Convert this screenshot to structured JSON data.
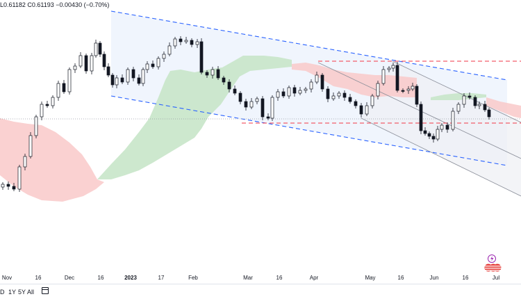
{
  "header": {
    "low": "L0.61182",
    "close": "C0.61193",
    "change": "−0.00430 (−0.70%)"
  },
  "toolbar": {
    "timeframes": [
      "D",
      "1Y",
      "5Y",
      "All"
    ]
  },
  "chart_data": {
    "type": "candlestick",
    "title": "",
    "xlabel": "",
    "ylabel": "",
    "x_ticks": [
      "Nov",
      "16",
      "Dec",
      "16",
      "2023",
      "17",
      "Feb",
      "Mar",
      "16",
      "Apr",
      "May",
      "16",
      "Jun",
      "16",
      "Jul"
    ],
    "y_axis_visible": false,
    "last_close": 0.61193,
    "overlays": [
      "Ichimoku cloud",
      "descending channel (blue dashed)",
      "horizontal range (red dashed)",
      "regression channel (grey)"
    ],
    "colors": {
      "up": "#ffffff",
      "down": "#131722",
      "cloud_bull": "#c8e6c9",
      "cloud_bear": "#ffcdd2",
      "channel": "#2962ff",
      "range": "#f23645"
    }
  },
  "badges": {
    "flash_icon": "lightning-icon",
    "flag_icon": "us-flag-icon"
  }
}
